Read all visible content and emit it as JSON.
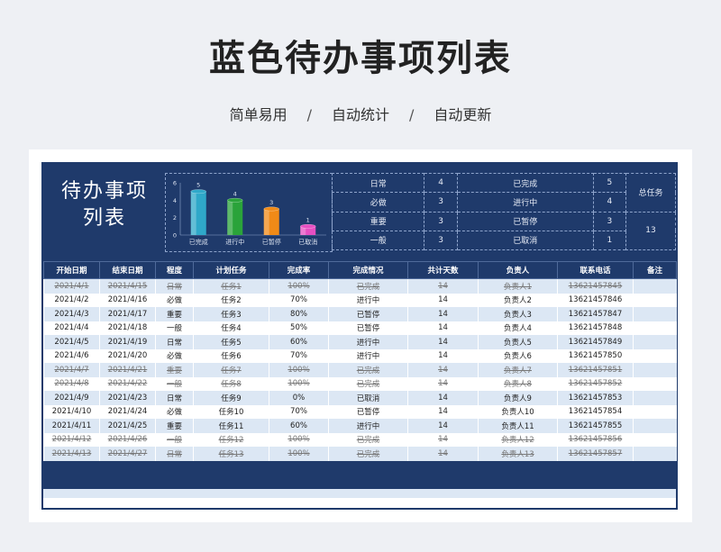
{
  "page": {
    "title": "蓝色待办事项列表",
    "subtitle": [
      "简单易用",
      "自动统计",
      "自动更新"
    ],
    "separator": "/"
  },
  "sheet": {
    "big_title_line1": "待办事项",
    "big_title_line2": "列表"
  },
  "chart_data": {
    "type": "bar",
    "categories": [
      "已完成",
      "进行中",
      "已暂停",
      "已取消"
    ],
    "values": [
      5,
      4,
      3,
      1
    ],
    "ylim": [
      0,
      6
    ],
    "yticks": [
      0,
      2,
      4,
      6
    ],
    "colors": [
      "#2fa8c9",
      "#2aa33a",
      "#f08a17",
      "#e64fc2"
    ]
  },
  "stats": {
    "rows": [
      {
        "label": "日常",
        "value": "4",
        "status": "已完成",
        "count": "5"
      },
      {
        "label": "必做",
        "value": "3",
        "status": "进行中",
        "count": "4"
      },
      {
        "label": "重要",
        "value": "3",
        "status": "已暂停",
        "count": "3"
      },
      {
        "label": "一般",
        "value": "3",
        "status": "已取消",
        "count": "1"
      }
    ],
    "total_label": "总任务",
    "total_value": "13"
  },
  "table": {
    "headers": [
      "开始日期",
      "结束日期",
      "程度",
      "计划任务",
      "完成率",
      "完成情况",
      "共计天数",
      "负责人",
      "联系电话",
      "备注"
    ],
    "rows": [
      [
        "2021/4/1",
        "2021/4/15",
        "日常",
        "任务1",
        "100%",
        "已完成",
        "14",
        "负责人1",
        "13621457845",
        ""
      ],
      [
        "2021/4/2",
        "2021/4/16",
        "必做",
        "任务2",
        "70%",
        "进行中",
        "14",
        "负责人2",
        "13621457846",
        ""
      ],
      [
        "2021/4/3",
        "2021/4/17",
        "重要",
        "任务3",
        "80%",
        "已暂停",
        "14",
        "负责人3",
        "13621457847",
        ""
      ],
      [
        "2021/4/4",
        "2021/4/18",
        "一般",
        "任务4",
        "50%",
        "已暂停",
        "14",
        "负责人4",
        "13621457848",
        ""
      ],
      [
        "2021/4/5",
        "2021/4/19",
        "日常",
        "任务5",
        "60%",
        "进行中",
        "14",
        "负责人5",
        "13621457849",
        ""
      ],
      [
        "2021/4/6",
        "2021/4/20",
        "必做",
        "任务6",
        "70%",
        "进行中",
        "14",
        "负责人6",
        "13621457850",
        ""
      ],
      [
        "2021/4/7",
        "2021/4/21",
        "重要",
        "任务7",
        "100%",
        "已完成",
        "14",
        "负责人7",
        "13621457851",
        ""
      ],
      [
        "2021/4/8",
        "2021/4/22",
        "一般",
        "任务8",
        "100%",
        "已完成",
        "14",
        "负责人8",
        "13621457852",
        ""
      ],
      [
        "2021/4/9",
        "2021/4/23",
        "日常",
        "任务9",
        "0%",
        "已取消",
        "14",
        "负责人9",
        "13621457853",
        ""
      ],
      [
        "2021/4/10",
        "2021/4/24",
        "必做",
        "任务10",
        "70%",
        "已暂停",
        "14",
        "负责人10",
        "13621457854",
        ""
      ],
      [
        "2021/4/11",
        "2021/4/25",
        "重要",
        "任务11",
        "60%",
        "进行中",
        "14",
        "负责人11",
        "13621457855",
        ""
      ],
      [
        "2021/4/12",
        "2021/4/26",
        "一般",
        "任务12",
        "100%",
        "已完成",
        "14",
        "负责人12",
        "13621457856",
        ""
      ],
      [
        "2021/4/13",
        "2021/4/27",
        "日常",
        "任务13",
        "100%",
        "已完成",
        "14",
        "负责人13",
        "13621457857",
        ""
      ]
    ]
  }
}
